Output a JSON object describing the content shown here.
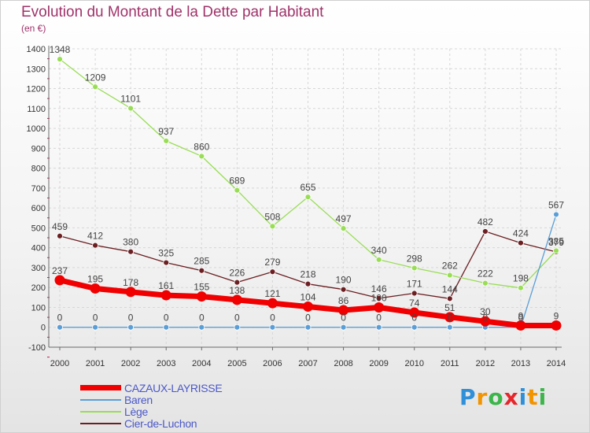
{
  "colors": {
    "title": "#a0336a",
    "legend_text": "#4b58c8",
    "axis": "#6a6a6a",
    "grid": "#d7d7d7",
    "tick_mark": "#c8175a",
    "label": "#444444"
  },
  "chart_data": {
    "type": "line",
    "title": "Evolution du Montant de la Dette par Habitant",
    "subtitle": "(en €)",
    "xlabel": "",
    "ylabel": "",
    "ylim": [
      -100,
      1400
    ],
    "ytick_step": 100,
    "grid": true,
    "legend_position": "bottom-left",
    "x": [
      "2000",
      "2001",
      "2002",
      "2003",
      "2004",
      "2005",
      "2006",
      "2007",
      "2008",
      "2009",
      "2010",
      "2011",
      "2012",
      "2013",
      "2014"
    ],
    "series": [
      {
        "name": "Cier-de-Luchon",
        "color": "#6b1f22",
        "width": 1.3,
        "marker": 3.5,
        "values": [
          459,
          412,
          380,
          325,
          285,
          226,
          279,
          218,
          190,
          146,
          171,
          144,
          482,
          424,
          379
        ]
      },
      {
        "name": "Lège",
        "color": "#99dd55",
        "width": 1.3,
        "marker": 3.5,
        "values": [
          1348,
          1209,
          1101,
          937,
          860,
          689,
          508,
          655,
          497,
          340,
          298,
          262,
          222,
          198,
          385
        ]
      },
      {
        "name": "Baren",
        "color": "#5b9ed6",
        "width": 1.3,
        "marker": 3.5,
        "values": [
          0,
          0,
          0,
          0,
          0,
          0,
          0,
          0,
          0,
          0,
          0,
          0,
          0,
          0,
          567
        ]
      },
      {
        "name": "CAZAUX-LAYRISSE",
        "color": "#f00000",
        "width": 7,
        "marker": 6.5,
        "values": [
          237,
          195,
          178,
          161,
          155,
          138,
          121,
          104,
          86,
          100,
          74,
          51,
          30,
          9,
          9
        ]
      }
    ],
    "legend_order": [
      "CAZAUX-LAYRISSE",
      "Baren",
      "Lège",
      "Cier-de-Luchon"
    ]
  },
  "logo": {
    "letters": [
      "P",
      "r",
      "o",
      "x",
      "i",
      "t",
      "i"
    ],
    "colors": [
      "#2f8fd8",
      "#f29400",
      "#3cb54a",
      "#e6262b",
      "#2f8fd8",
      "#f29400",
      "#3cb54a"
    ]
  }
}
